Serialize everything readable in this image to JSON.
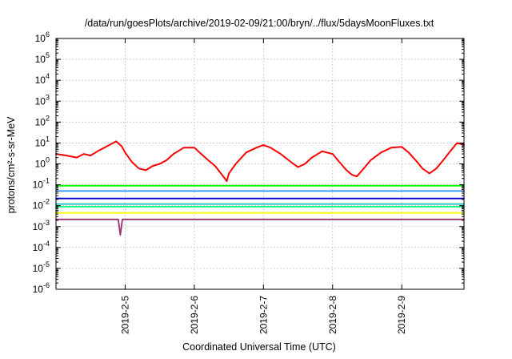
{
  "chart_data": {
    "type": "line",
    "title": "/data/run/goesPlots/archive/2019-02-09/21:00/bryn/../flux/5daysMoonFluxes.txt",
    "xlabel": "Coordinated Universal Time (UTC)",
    "ylabel": "protons/cm²-s-sr-MeV",
    "yscale": "log",
    "ylim": [
      1e-06,
      1000000.0
    ],
    "xlim": [
      4.0,
      9.9
    ],
    "x_unit": "days of February 2019",
    "grid": true,
    "legend": "none",
    "y_ticks": [
      {
        "value": 1e-06,
        "base": "10",
        "exp": "-6"
      },
      {
        "value": 1e-05,
        "base": "10",
        "exp": "-5"
      },
      {
        "value": 0.0001,
        "base": "10",
        "exp": "-4"
      },
      {
        "value": 0.001,
        "base": "10",
        "exp": "-3"
      },
      {
        "value": 0.01,
        "base": "10",
        "exp": "-2"
      },
      {
        "value": 0.1,
        "base": "10",
        "exp": "-1"
      },
      {
        "value": 1,
        "base": "10",
        "exp": "0"
      },
      {
        "value": 10,
        "base": "10",
        "exp": "1"
      },
      {
        "value": 100,
        "base": "10",
        "exp": "2"
      },
      {
        "value": 1000,
        "base": "10",
        "exp": "3"
      },
      {
        "value": 10000,
        "base": "10",
        "exp": "4"
      },
      {
        "value": 100000,
        "base": "10",
        "exp": "5"
      },
      {
        "value": 1000000,
        "base": "10",
        "exp": "6"
      }
    ],
    "x_ticks": [
      {
        "value": 5,
        "label": "2019-2-5"
      },
      {
        "value": 6,
        "label": "2019-2-6"
      },
      {
        "value": 7,
        "label": "2019-2-7"
      },
      {
        "value": 8,
        "label": "2019-2-8"
      },
      {
        "value": 9,
        "label": "2019-2-9"
      }
    ],
    "series": [
      {
        "color": "#ff0000",
        "points": [
          [
            4.0,
            3.0
          ],
          [
            4.15,
            2.5
          ],
          [
            4.3,
            2.0
          ],
          [
            4.4,
            3.0
          ],
          [
            4.5,
            2.5
          ],
          [
            4.6,
            4.0
          ],
          [
            4.7,
            6.0
          ],
          [
            4.8,
            9.0
          ],
          [
            4.87,
            12.0
          ],
          [
            4.95,
            7.0
          ],
          [
            5.0,
            3.5
          ],
          [
            5.1,
            1.2
          ],
          [
            5.2,
            0.6
          ],
          [
            5.3,
            0.5
          ],
          [
            5.4,
            0.8
          ],
          [
            5.5,
            1.0
          ],
          [
            5.6,
            1.5
          ],
          [
            5.7,
            3.0
          ],
          [
            5.85,
            6.0
          ],
          [
            6.0,
            6.0
          ],
          [
            6.1,
            3.0
          ],
          [
            6.2,
            1.5
          ],
          [
            6.3,
            0.8
          ],
          [
            6.4,
            0.3
          ],
          [
            6.47,
            0.15
          ],
          [
            6.5,
            0.35
          ],
          [
            6.6,
            1.0
          ],
          [
            6.75,
            3.5
          ],
          [
            6.9,
            6.0
          ],
          [
            7.0,
            8.0
          ],
          [
            7.1,
            6.0
          ],
          [
            7.25,
            3.0
          ],
          [
            7.4,
            1.2
          ],
          [
            7.5,
            0.7
          ],
          [
            7.6,
            1.0
          ],
          [
            7.7,
            2.0
          ],
          [
            7.85,
            4.0
          ],
          [
            8.0,
            3.0
          ],
          [
            8.1,
            1.2
          ],
          [
            8.2,
            0.5
          ],
          [
            8.28,
            0.3
          ],
          [
            8.35,
            0.25
          ],
          [
            8.45,
            0.6
          ],
          [
            8.55,
            1.5
          ],
          [
            8.7,
            3.5
          ],
          [
            8.85,
            6.0
          ],
          [
            9.0,
            6.5
          ],
          [
            9.1,
            3.5
          ],
          [
            9.2,
            1.5
          ],
          [
            9.3,
            0.6
          ],
          [
            9.4,
            0.35
          ],
          [
            9.5,
            0.6
          ],
          [
            9.6,
            1.5
          ],
          [
            9.7,
            4.0
          ],
          [
            9.8,
            10.0
          ],
          [
            9.9,
            8.0
          ]
        ]
      },
      {
        "color": "#00ff00",
        "points": [
          [
            4.0,
            0.09
          ],
          [
            9.9,
            0.09
          ]
        ]
      },
      {
        "color": "#1e90ff",
        "points": [
          [
            4.0,
            0.05
          ],
          [
            9.9,
            0.05
          ]
        ]
      },
      {
        "color": "#0000cd",
        "points": [
          [
            4.0,
            0.022
          ],
          [
            9.9,
            0.022
          ]
        ]
      },
      {
        "color": "#00c0c0",
        "points": [
          [
            4.0,
            0.012
          ],
          [
            9.9,
            0.012
          ]
        ]
      },
      {
        "color": "#00ff7f",
        "points": [
          [
            4.0,
            0.009
          ],
          [
            9.9,
            0.009
          ]
        ]
      },
      {
        "color": "#ffff00",
        "points": [
          [
            4.0,
            0.0045
          ],
          [
            9.9,
            0.0045
          ]
        ]
      },
      {
        "color": "#9b2f6e",
        "points": [
          [
            4.0,
            0.0022
          ],
          [
            4.9,
            0.0022
          ],
          [
            4.93,
            0.0004
          ],
          [
            4.96,
            0.0022
          ],
          [
            9.9,
            0.0022
          ]
        ]
      }
    ]
  }
}
